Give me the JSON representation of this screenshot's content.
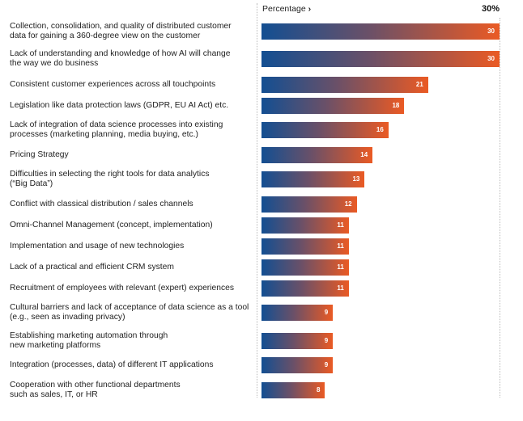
{
  "chart_data": {
    "type": "bar",
    "orientation": "horizontal",
    "axis_label": "Percentage",
    "max_label": "30%",
    "xlim": [
      0,
      30
    ],
    "categories": [
      "Collection, consolidation, and quality of distributed customer data for gaining a 360-degree view on the customer",
      "Lack of understanding and knowledge of how AI will change the way we do business",
      "Consistent customer experiences across all touchpoints",
      "Legislation like data protection laws (GDPR, EU AI Act) etc.",
      "Lack of integration of data science processes into existing processes (marketing planning, media buying, etc.)",
      "Pricing Strategy",
      "Difficulties in selecting the right tools for data analytics (“Big Data”)",
      "Conflict with classical distribution / sales channels",
      "Omni-Channel Management (concept, implementation)",
      "Implementation and usage of new technologies",
      "Lack of a practical and efficient CRM system",
      "Recruitment of employees with relevant (expert) experiences",
      "Cultural barriers and lack of acceptance of data science as a tool (e.g., seen as invading privacy)",
      "Establishing marketing automation through new marketing platforms",
      "Integration (processes, data) of different IT applications",
      "Cooperation with other functional departments such as sales, IT, or HR"
    ],
    "values": [
      30,
      30,
      21,
      18,
      16,
      14,
      13,
      12,
      11,
      11,
      11,
      11,
      9,
      9,
      9,
      8
    ],
    "colors": {
      "gradient_start": "#134f92",
      "gradient_end": "#ea5a24"
    }
  }
}
